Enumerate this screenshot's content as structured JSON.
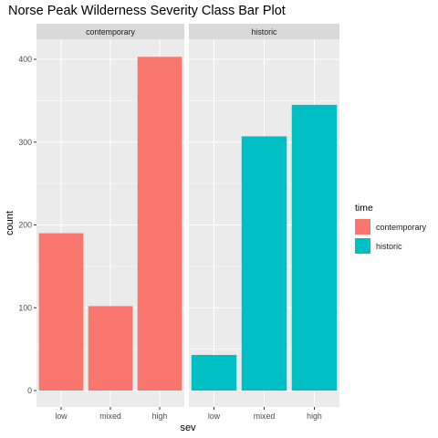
{
  "chart_data": {
    "type": "bar",
    "title": "Norse Peak Wilderness Severity Class Bar Plot",
    "xlabel": "sev",
    "ylabel": "count",
    "categories": [
      "low",
      "mixed",
      "high"
    ],
    "ylim": [
      0,
      420
    ],
    "yticks": [
      0,
      100,
      200,
      300,
      400
    ],
    "grid": true,
    "legend": {
      "title": "time",
      "position": "right"
    },
    "panels": [
      {
        "label": "contemporary",
        "color": "#F8766D",
        "values": [
          190,
          102,
          403
        ]
      },
      {
        "label": "historic",
        "color": "#00BFC4",
        "values": [
          43,
          307,
          345
        ]
      }
    ]
  }
}
